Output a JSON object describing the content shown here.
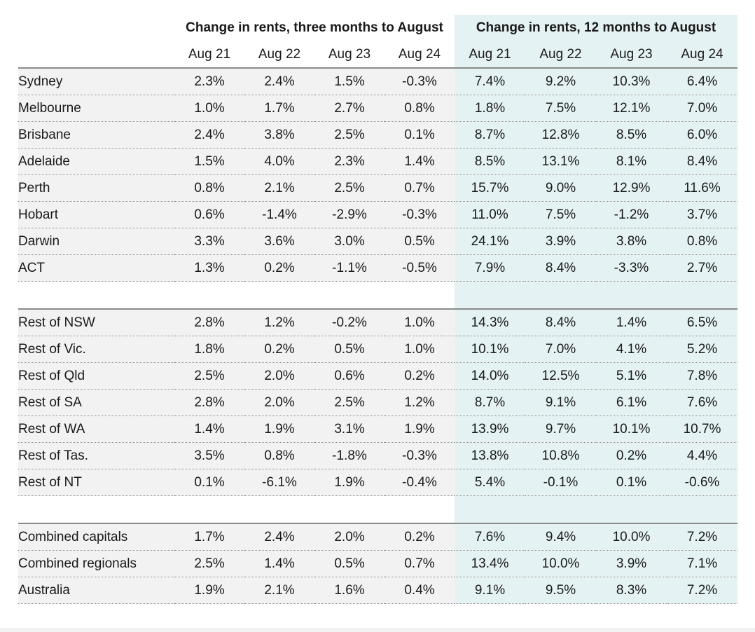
{
  "chart_data": {
    "type": "table",
    "column_groups": [
      {
        "label": "Change in rents, three months to August",
        "columns": [
          "Aug 21",
          "Aug 22",
          "Aug 23",
          "Aug 24"
        ]
      },
      {
        "label": "Change in rents, 12 months to August",
        "columns": [
          "Aug 21",
          "Aug 22",
          "Aug 23",
          "Aug 24"
        ]
      }
    ],
    "row_groups": [
      [
        {
          "region": "Sydney",
          "three_month": [
            "2.3%",
            "2.4%",
            "1.5%",
            "-0.3%"
          ],
          "twelve_month": [
            "7.4%",
            "9.2%",
            "10.3%",
            "6.4%"
          ]
        },
        {
          "region": "Melbourne",
          "three_month": [
            "1.0%",
            "1.7%",
            "2.7%",
            "0.8%"
          ],
          "twelve_month": [
            "1.8%",
            "7.5%",
            "12.1%",
            "7.0%"
          ]
        },
        {
          "region": "Brisbane",
          "three_month": [
            "2.4%",
            "3.8%",
            "2.5%",
            "0.1%"
          ],
          "twelve_month": [
            "8.7%",
            "12.8%",
            "8.5%",
            "6.0%"
          ]
        },
        {
          "region": "Adelaide",
          "three_month": [
            "1.5%",
            "4.0%",
            "2.3%",
            "1.4%"
          ],
          "twelve_month": [
            "8.5%",
            "13.1%",
            "8.1%",
            "8.4%"
          ]
        },
        {
          "region": "Perth",
          "three_month": [
            "0.8%",
            "2.1%",
            "2.5%",
            "0.7%"
          ],
          "twelve_month": [
            "15.7%",
            "9.0%",
            "12.9%",
            "11.6%"
          ]
        },
        {
          "region": "Hobart",
          "three_month": [
            "0.6%",
            "-1.4%",
            "-2.9%",
            "-0.3%"
          ],
          "twelve_month": [
            "11.0%",
            "7.5%",
            "-1.2%",
            "3.7%"
          ]
        },
        {
          "region": "Darwin",
          "three_month": [
            "3.3%",
            "3.6%",
            "3.0%",
            "0.5%"
          ],
          "twelve_month": [
            "24.1%",
            "3.9%",
            "3.8%",
            "0.8%"
          ]
        },
        {
          "region": "ACT",
          "three_month": [
            "1.3%",
            "0.2%",
            "-1.1%",
            "-0.5%"
          ],
          "twelve_month": [
            "7.9%",
            "8.4%",
            "-3.3%",
            "2.7%"
          ]
        }
      ],
      [
        {
          "region": "Rest of NSW",
          "three_month": [
            "2.8%",
            "1.2%",
            "-0.2%",
            "1.0%"
          ],
          "twelve_month": [
            "14.3%",
            "8.4%",
            "1.4%",
            "6.5%"
          ]
        },
        {
          "region": "Rest of Vic.",
          "three_month": [
            "1.8%",
            "0.2%",
            "0.5%",
            "1.0%"
          ],
          "twelve_month": [
            "10.1%",
            "7.0%",
            "4.1%",
            "5.2%"
          ]
        },
        {
          "region": "Rest of Qld",
          "three_month": [
            "2.5%",
            "2.0%",
            "0.6%",
            "0.2%"
          ],
          "twelve_month": [
            "14.0%",
            "12.5%",
            "5.1%",
            "7.8%"
          ]
        },
        {
          "region": "Rest of SA",
          "three_month": [
            "2.8%",
            "2.0%",
            "2.5%",
            "1.2%"
          ],
          "twelve_month": [
            "8.7%",
            "9.1%",
            "6.1%",
            "7.6%"
          ]
        },
        {
          "region": "Rest of WA",
          "three_month": [
            "1.4%",
            "1.9%",
            "3.1%",
            "1.9%"
          ],
          "twelve_month": [
            "13.9%",
            "9.7%",
            "10.1%",
            "10.7%"
          ]
        },
        {
          "region": "Rest of Tas.",
          "three_month": [
            "3.5%",
            "0.8%",
            "-1.8%",
            "-0.3%"
          ],
          "twelve_month": [
            "13.8%",
            "10.8%",
            "0.2%",
            "4.4%"
          ]
        },
        {
          "region": "Rest of NT",
          "three_month": [
            "0.1%",
            "-6.1%",
            "1.9%",
            "-0.4%"
          ],
          "twelve_month": [
            "5.4%",
            "-0.1%",
            "0.1%",
            "-0.6%"
          ]
        }
      ],
      [
        {
          "region": "Combined capitals",
          "three_month": [
            "1.7%",
            "2.4%",
            "2.0%",
            "0.2%"
          ],
          "twelve_month": [
            "7.6%",
            "9.4%",
            "10.0%",
            "7.2%"
          ]
        },
        {
          "region": "Combined regionals",
          "three_month": [
            "2.5%",
            "1.4%",
            "0.5%",
            "0.7%"
          ],
          "twelve_month": [
            "13.4%",
            "10.0%",
            "3.9%",
            "7.1%"
          ]
        },
        {
          "region": "Australia",
          "three_month": [
            "1.9%",
            "2.1%",
            "1.6%",
            "0.4%"
          ],
          "twelve_month": [
            "9.1%",
            "9.5%",
            "8.3%",
            "7.2%"
          ]
        }
      ]
    ],
    "colors": {
      "three_month_background": "#f2f2f2",
      "twelve_month_background": "#e4f2f3",
      "rule": "#8a8a8a"
    }
  }
}
